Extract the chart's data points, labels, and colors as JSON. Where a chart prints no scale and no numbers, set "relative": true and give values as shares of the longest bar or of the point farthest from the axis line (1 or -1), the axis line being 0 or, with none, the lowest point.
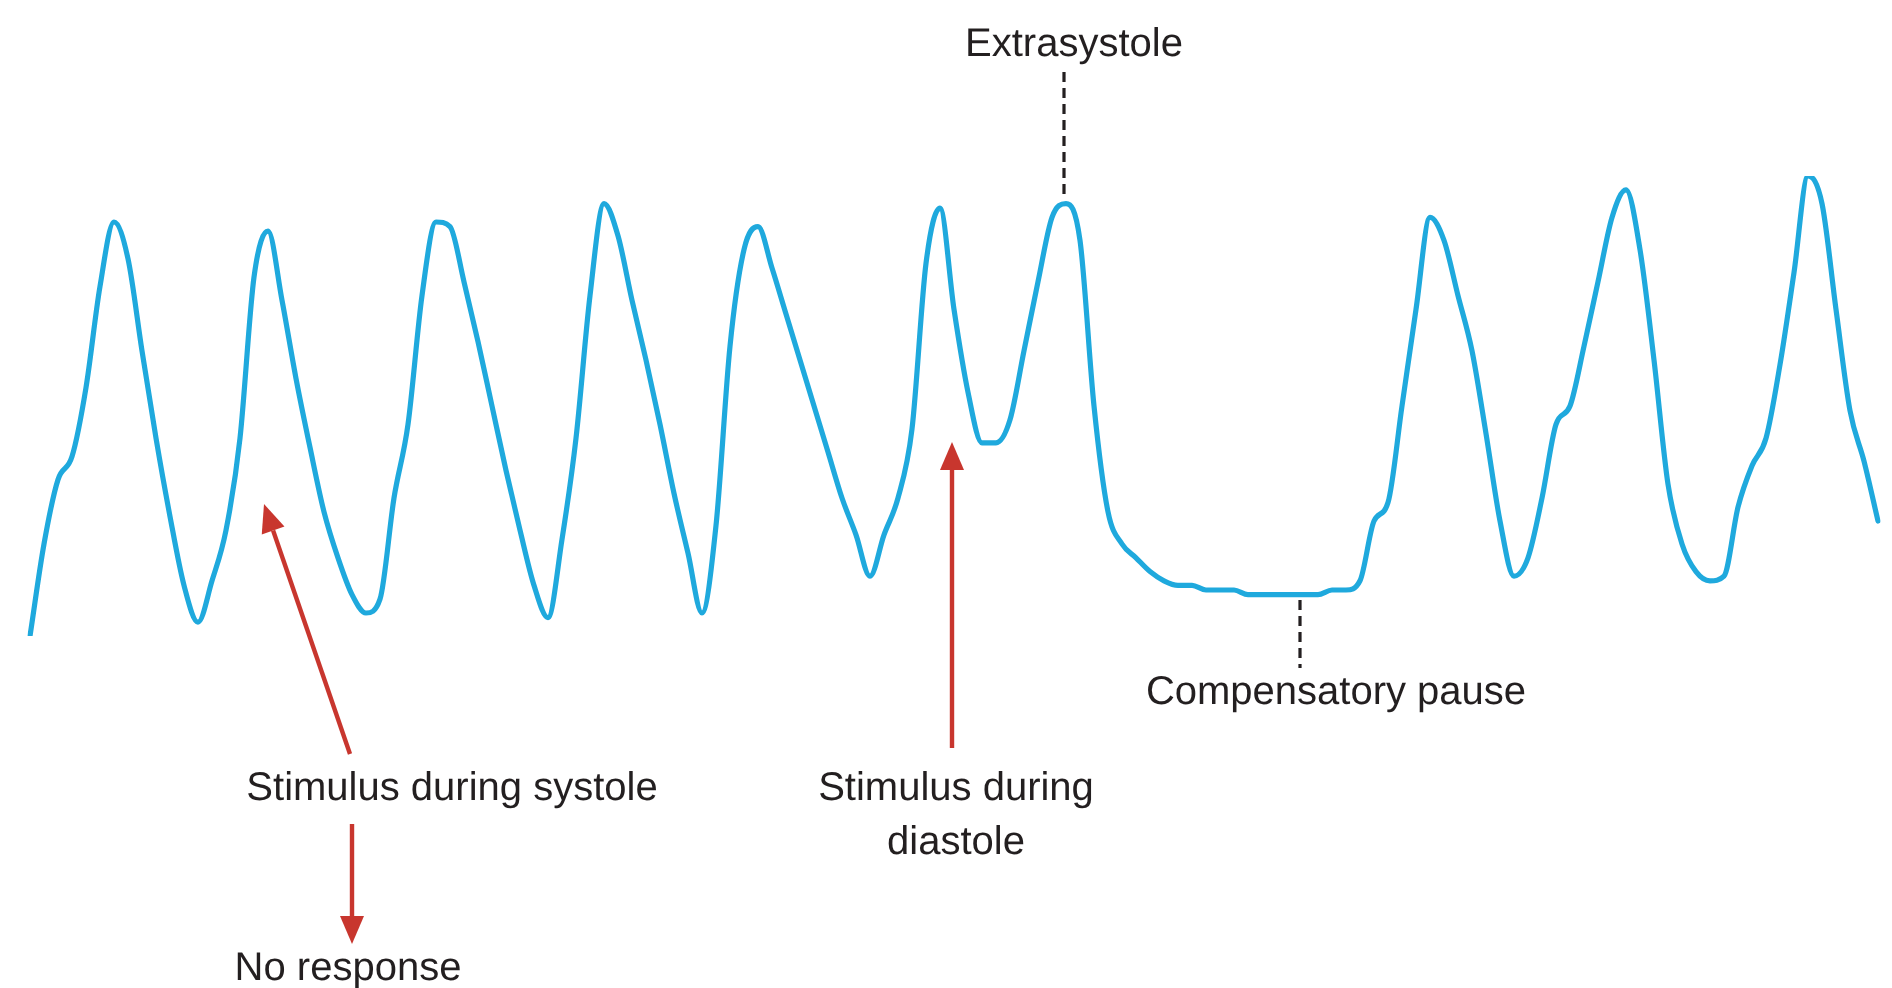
{
  "chart_data": {
    "type": "line",
    "relative": true,
    "categories": [
      null,
      null,
      null,
      null,
      null,
      null,
      null,
      null,
      null,
      null,
      null,
      null,
      null,
      null,
      null,
      null,
      null,
      null,
      null,
      null,
      null,
      null,
      null,
      null,
      null,
      null,
      null,
      null,
      null,
      null,
      null,
      null,
      null,
      null,
      null,
      null,
      null,
      null,
      null,
      null,
      null,
      null,
      null,
      null,
      null,
      null,
      null,
      null,
      null,
      null,
      null,
      null,
      null,
      null,
      null,
      null,
      null,
      null,
      null,
      null,
      null,
      null,
      null,
      null,
      null,
      null,
      null,
      null,
      null,
      null,
      null,
      null,
      null,
      null,
      null,
      null,
      null,
      null,
      null,
      null,
      null,
      null,
      null,
      null,
      null,
      null,
      null,
      null,
      null,
      null,
      null,
      null,
      null,
      null,
      null,
      null,
      null,
      null,
      null,
      null,
      null,
      null,
      null,
      null,
      null,
      null,
      null,
      null,
      null,
      null,
      null,
      null,
      null,
      null,
      null,
      null,
      null,
      null,
      null,
      null,
      null,
      null,
      null,
      null,
      null,
      null,
      null,
      null,
      null,
      null,
      null,
      null,
      null
    ],
    "series": [
      {
        "color": "#1fa9dd",
        "values": [
          0,
          0.2,
          0.34,
          0.39,
          0.54,
          0.76,
          0.9,
          0.82,
          0.62,
          0.43,
          0.26,
          0.11,
          0.03,
          0.12,
          0.23,
          0.43,
          0.78,
          0.88,
          0.73,
          0.56,
          0.41,
          0.27,
          0.17,
          0.09,
          0.05,
          0.08,
          0.3,
          0.46,
          0.74,
          0.9,
          0.89,
          0.77,
          0.64,
          0.5,
          0.36,
          0.23,
          0.11,
          0.04,
          0.21,
          0.43,
          0.74,
          0.94,
          0.87,
          0.73,
          0.6,
          0.46,
          0.31,
          0.18,
          0.05,
          0.24,
          0.63,
          0.84,
          0.89,
          0.8,
          0.7,
          0.6,
          0.5,
          0.4,
          0.3,
          0.22,
          0.13,
          0.22,
          0.3,
          0.45,
          0.81,
          0.93,
          0.71,
          0.53,
          0.42,
          0.42,
          0.47,
          0.62,
          0.77,
          0.91,
          0.94,
          0.86,
          0.5,
          0.27,
          0.2,
          0.17,
          0.14,
          0.12,
          0.11,
          0.11,
          0.1,
          0.1,
          0.1,
          0.09,
          0.09,
          0.09,
          0.09,
          0.09,
          0.09,
          0.1,
          0.1,
          0.12,
          0.25,
          0.29,
          0.5,
          0.71,
          0.91,
          0.86,
          0.74,
          0.62,
          0.44,
          0.25,
          0.13,
          0.17,
          0.3,
          0.46,
          0.5,
          0.63,
          0.77,
          0.91,
          0.97,
          0.84,
          0.6,
          0.33,
          0.2,
          0.14,
          0.12,
          0.13,
          0.28,
          0.37,
          0.43,
          0.59,
          0.79,
          1,
          0.94,
          0.71,
          0.49,
          0.38,
          0.25
        ]
      }
    ],
    "marker": "none",
    "grid": false,
    "legend": false,
    "annotations": [
      "Extrasystole",
      "Compensatory pause",
      "Stimulus during systole",
      "No response",
      "Stimulus during diastole"
    ]
  }
}
